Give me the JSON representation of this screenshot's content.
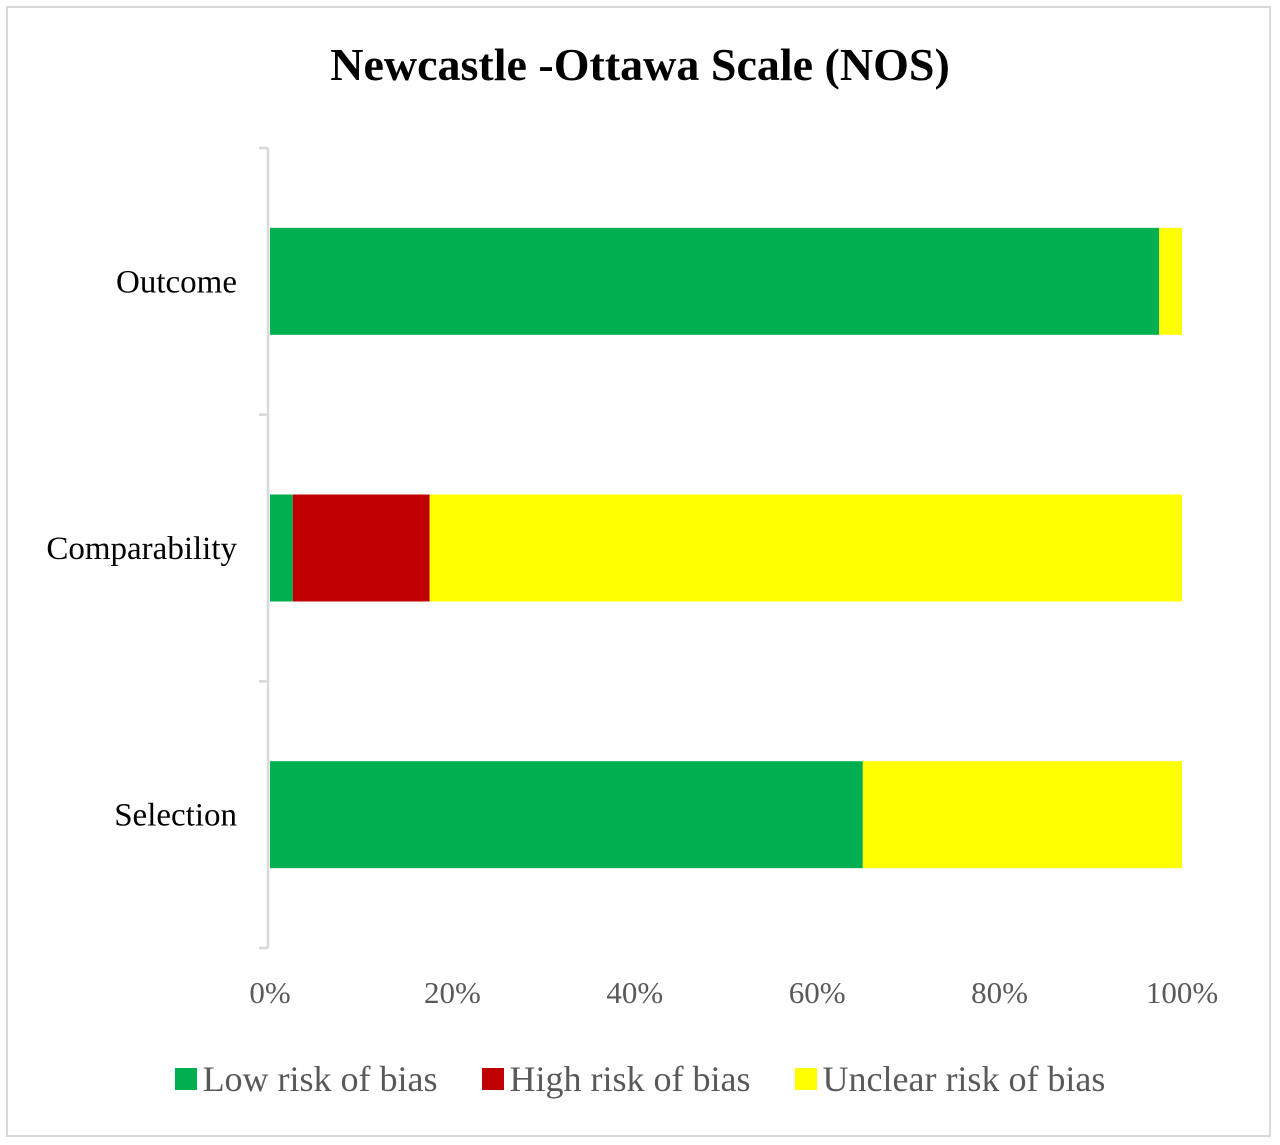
{
  "chart_data": {
    "type": "bar",
    "orientation": "horizontal",
    "stacked": true,
    "title": "Newcastle -Ottawa Scale (NOS)",
    "categories": [
      "Outcome",
      "Comparability",
      "Selection"
    ],
    "series": [
      {
        "name": "Low risk of bias",
        "color": "#00b050",
        "values": [
          97.5,
          2.5,
          65
        ]
      },
      {
        "name": "High risk of bias",
        "color": "#c00000",
        "values": [
          0,
          15,
          0
        ]
      },
      {
        "name": "Unclear risk of bias",
        "color": "#ffff00",
        "values": [
          2.5,
          82.5,
          35
        ]
      }
    ],
    "xlim": [
      0,
      100
    ],
    "xticks": [
      "0%",
      "20%",
      "40%",
      "60%",
      "80%",
      "100%"
    ],
    "xlabel": "",
    "ylabel": "",
    "grid": false,
    "legend_position": "bottom"
  }
}
